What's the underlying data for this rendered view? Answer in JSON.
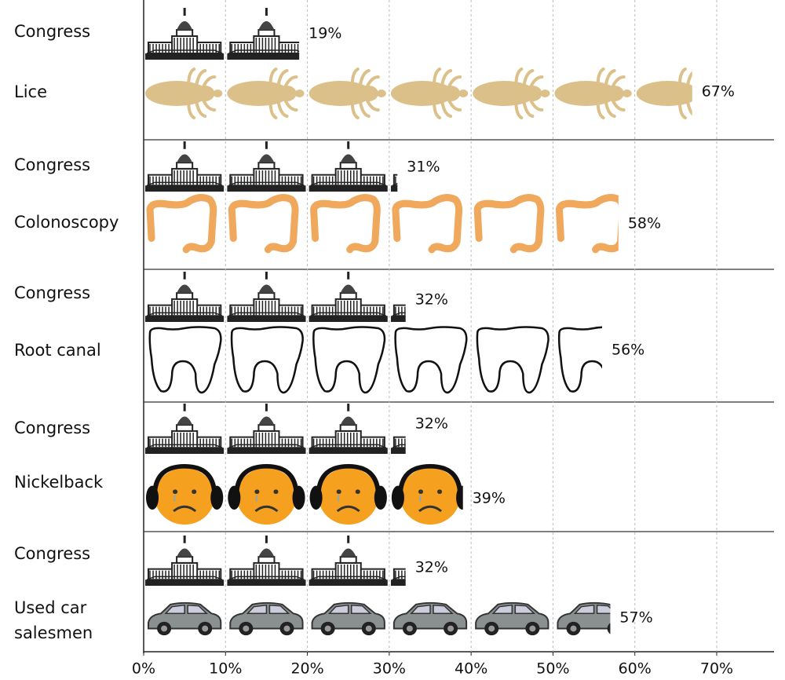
{
  "chart_data": {
    "type": "pictograph",
    "categories": [
      "Congress",
      "Lice",
      "Congress",
      "Colonoscopy",
      "Congress",
      "Root canal",
      "Congress",
      "Nickelback",
      "Congress",
      "Used car salesmen"
    ],
    "values": [
      19,
      67,
      31,
      58,
      32,
      56,
      32,
      39,
      32,
      57
    ],
    "value_labels": [
      "19%",
      "67%",
      "31%",
      "58%",
      "32%",
      "56%",
      "32%",
      "39%",
      "32%",
      "57%"
    ],
    "xlim": [
      0,
      77
    ],
    "xticks": [
      {
        "value": 0,
        "label": "0%"
      },
      {
        "value": 10,
        "label": "10%"
      },
      {
        "value": 20,
        "label": "20%"
      },
      {
        "value": 30,
        "label": "30%"
      },
      {
        "value": 40,
        "label": "40%"
      },
      {
        "value": 50,
        "label": "50%"
      },
      {
        "value": 60,
        "label": "60%"
      },
      {
        "value": 70,
        "label": "70%"
      }
    ],
    "grid": true
  }
}
